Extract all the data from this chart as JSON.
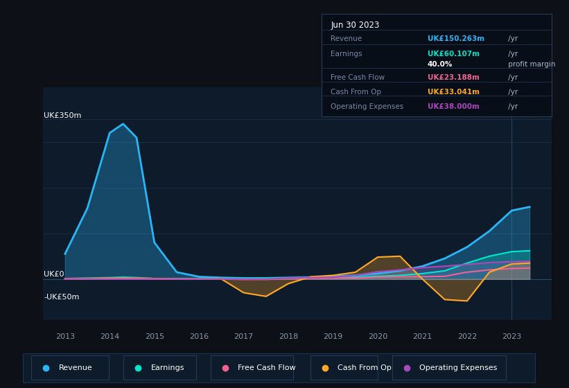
{
  "bg_color": "#0d1117",
  "plot_bg_color": "#0d1b2a",
  "grid_color": "#1e3550",
  "years": [
    2013.0,
    2013.5,
    2014.0,
    2014.3,
    2014.6,
    2015.0,
    2015.5,
    2016.0,
    2016.5,
    2017.0,
    2017.5,
    2018.0,
    2018.5,
    2019.0,
    2019.5,
    2020.0,
    2020.5,
    2021.0,
    2021.5,
    2022.0,
    2022.5,
    2023.0,
    2023.4
  ],
  "revenue": [
    55,
    155,
    320,
    340,
    310,
    80,
    15,
    5,
    3,
    2,
    2,
    3,
    4,
    6,
    8,
    12,
    18,
    28,
    45,
    70,
    105,
    150,
    158
  ],
  "earnings": [
    1,
    2,
    3,
    4,
    3,
    1,
    1,
    1,
    1,
    1,
    2,
    2,
    2,
    3,
    4,
    6,
    8,
    12,
    18,
    35,
    50,
    60,
    62
  ],
  "free_cash_flow": [
    1,
    1,
    2,
    2,
    2,
    1,
    0,
    0,
    0,
    -1,
    -1,
    1,
    1,
    2,
    2,
    4,
    5,
    5,
    6,
    15,
    20,
    23,
    24
  ],
  "cash_from_op": [
    0,
    0,
    1,
    1,
    1,
    0,
    0,
    0,
    0,
    -30,
    -38,
    -10,
    5,
    8,
    15,
    48,
    50,
    0,
    -45,
    -48,
    15,
    33,
    35
  ],
  "operating_expenses": [
    0,
    0,
    0,
    0,
    0,
    0,
    0,
    0,
    0,
    0,
    0,
    2,
    3,
    4,
    8,
    16,
    20,
    25,
    28,
    32,
    36,
    38,
    39
  ],
  "revenue_color": "#29b6f6",
  "earnings_color": "#00e5cc",
  "free_cash_flow_color": "#f06292",
  "cash_from_op_color": "#ffa726",
  "operating_expenses_color": "#ab47bc",
  "ylim_top": 420,
  "ylim_bottom": -90,
  "ylabel_top": "UK£350m",
  "ylabel_zero": "UK£0",
  "ylabel_neg": "-UK£50m",
  "xmin": 2012.5,
  "xmax": 2023.9,
  "info_box_title": "Jun 30 2023",
  "info_rows": [
    {
      "label": "Revenue",
      "value": "UK£150.263m",
      "suffix": " /yr",
      "color": "#29b6f6",
      "bold": true
    },
    {
      "label": "Earnings",
      "value": "UK£60.107m",
      "suffix": " /yr",
      "color": "#00e5cc",
      "bold": true
    },
    {
      "label": "",
      "value": "40.0%",
      "suffix": " profit margin",
      "color": "#ffffff",
      "bold": true
    },
    {
      "label": "Free Cash Flow",
      "value": "UK£23.188m",
      "suffix": " /yr",
      "color": "#f06292",
      "bold": true
    },
    {
      "label": "Cash From Op",
      "value": "UK£33.041m",
      "suffix": " /yr",
      "color": "#ffa726",
      "bold": true
    },
    {
      "label": "Operating Expenses",
      "value": "UK£38.000m",
      "suffix": " /yr",
      "color": "#ab47bc",
      "bold": true
    }
  ],
  "legend_items": [
    {
      "label": "Revenue",
      "color": "#29b6f6"
    },
    {
      "label": "Earnings",
      "color": "#00e5cc"
    },
    {
      "label": "Free Cash Flow",
      "color": "#f06292"
    },
    {
      "label": "Cash From Op",
      "color": "#ffa726"
    },
    {
      "label": "Operating Expenses",
      "color": "#ab47bc"
    }
  ],
  "xticks": [
    2013,
    2014,
    2015,
    2016,
    2017,
    2018,
    2019,
    2020,
    2021,
    2022,
    2023
  ]
}
